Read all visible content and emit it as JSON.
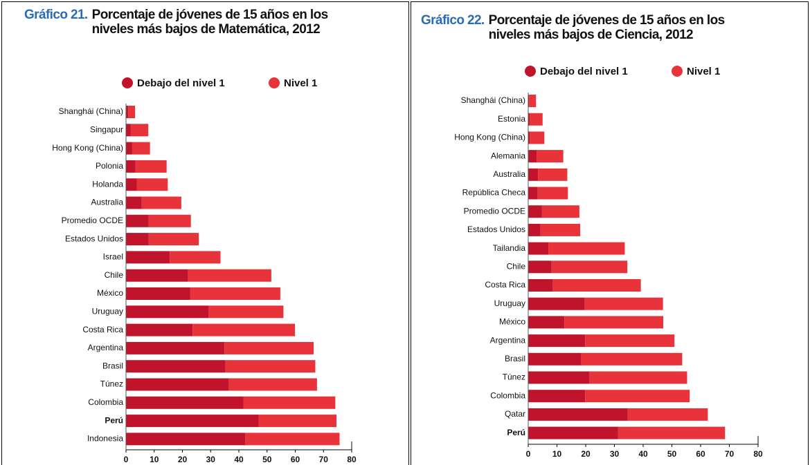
{
  "chart_data": [
    {
      "type": "stacked-barh",
      "label": "Gráfico 21.",
      "title": "Porcentaje de jóvenes de 15 años en los niveles más bajos de Matemática, 2012",
      "categories": [
        "Shanghái (China)",
        "Singapur",
        "Hong Kong (China)",
        "Polonia",
        "Holanda",
        "Australia",
        "Promedio OCDE",
        "Estados Unidos",
        "Israel",
        "Chile",
        "México",
        "Uruguay",
        "Costa Rica",
        "Argentina",
        "Brasil",
        "Túnez",
        "Colombia",
        "Perú",
        "Indonesia"
      ],
      "highlight_category": "Perú",
      "series": [
        {
          "name": "Debajo del nivel 1",
          "color": "#c0142c",
          "values": [
            0.8,
            1.7,
            2.2,
            3.3,
            3.8,
            5.6,
            8.0,
            8.0,
            15.5,
            22.0,
            22.8,
            29.2,
            23.6,
            34.9,
            35.2,
            36.5,
            41.6,
            47.0,
            42.3
          ]
        },
        {
          "name": "Nivel 1",
          "color": "#e8333b",
          "values": [
            2.4,
            6.2,
            6.3,
            11.1,
            11.0,
            14.0,
            15.0,
            17.8,
            18.0,
            29.5,
            31.9,
            26.6,
            36.3,
            31.6,
            31.9,
            31.2,
            32.6,
            27.6,
            33.4
          ]
        }
      ],
      "xlim": [
        0,
        80
      ],
      "xticks": [
        0,
        10,
        20,
        30,
        40,
        50,
        60,
        70,
        80
      ]
    },
    {
      "type": "stacked-barh",
      "label": "Gráfico 22.",
      "title": "Porcentaje de jóvenes de 15 años en los niveles más bajos de Ciencia, 2012",
      "categories": [
        "Shanghái (China)",
        "Estonia",
        "Hong Kong (China)",
        "Alemania",
        "Australia",
        "República Checa",
        "Promedio OCDE",
        "Estados Unidos",
        "Tailandia",
        "Chile",
        "Costa Rica",
        "Uruguay",
        "México",
        "Argentina",
        "Brasil",
        "Túnez",
        "Colombia",
        "Qatar",
        "Perú"
      ],
      "highlight_category": "Perú",
      "series": [
        {
          "name": "Debajo del nivel 1",
          "color": "#c0142c",
          "values": [
            0.3,
            0.5,
            0.5,
            2.9,
            3.4,
            3.3,
            4.8,
            4.2,
            7.0,
            8.1,
            8.6,
            19.7,
            12.6,
            19.8,
            18.5,
            21.3,
            19.8,
            34.6,
            31.3
          ]
        },
        {
          "name": "Nivel 1",
          "color": "#e8333b",
          "values": [
            2.4,
            4.5,
            5.1,
            9.3,
            10.2,
            10.5,
            13.0,
            13.9,
            26.6,
            26.4,
            30.6,
            27.2,
            34.4,
            31.1,
            35.1,
            34.0,
            36.4,
            27.9,
            37.2
          ]
        }
      ],
      "xlim": [
        0,
        80
      ],
      "xticks": [
        0,
        10,
        20,
        30,
        40,
        50,
        60,
        70,
        80
      ]
    }
  ]
}
